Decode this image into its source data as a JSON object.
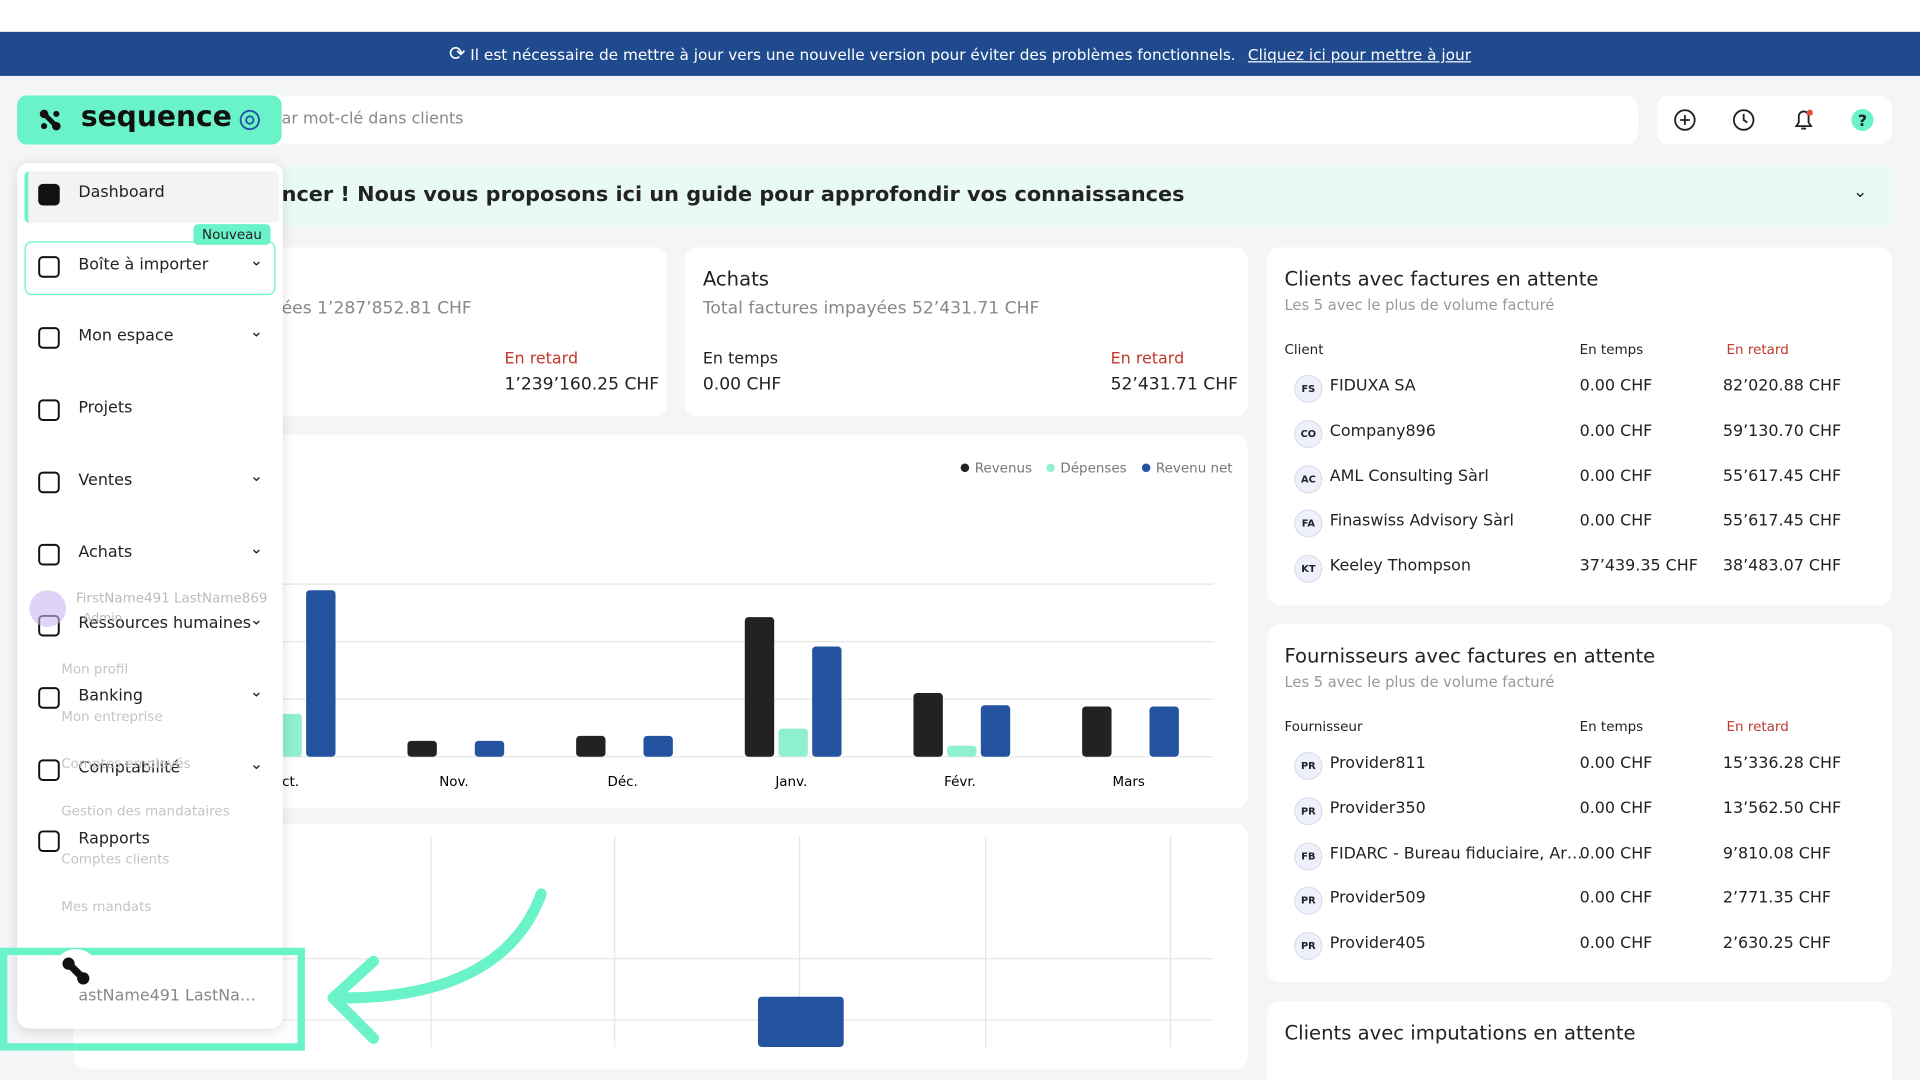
{
  "banner": {
    "message": "Il est nécessaire de mettre à jour vers une nouvelle version pour éviter des problèmes fonctionnels.",
    "link": "Cliquez ici pour mettre à jour"
  },
  "header": {
    "logo": "sequence",
    "search_placeholder": "ar mot-clé dans clients"
  },
  "guide": {
    "text": "ncer ! Nous vous proposons ici un guide pour approfondir vos connaissances"
  },
  "sidebar": {
    "items": [
      "Dashboard",
      "Boîte à importer",
      "Mon espace",
      "Projets",
      "Ventes",
      "Achats",
      "Ressources humaines",
      "Banking",
      "Comptabilité",
      "Rapports"
    ],
    "badge": "Nouveau"
  },
  "user_menu": {
    "name": "FirstName491 LastName869",
    "role": "Admin",
    "items": [
      "Mon profil",
      "Mon entreprise",
      "Comptes employés",
      "Gestion des mandataires",
      "Comptes clients",
      "Mes mandats"
    ],
    "footer": "astName491 LastNa…"
  },
  "sales_card": {
    "total": "ées 1’287’852.81 CHF",
    "late_label": "En retard",
    "late_value": "1’239’160.25 CHF"
  },
  "purchases_card": {
    "title": "Achats",
    "total": "Total factures impayées 52’431.71 CHF",
    "on_time_label": "En temps",
    "on_time_value": "0.00 CHF",
    "late_label": "En retard",
    "late_value": "52’431.71 CHF"
  },
  "revenue_chart": {
    "type": "bar",
    "categories": [
      "Oct.",
      "Nov.",
      "Déc.",
      "Janv.",
      "Févr.",
      "Mars"
    ],
    "series": [
      {
        "name": "Revenus",
        "color": "#222222",
        "values": [
          null,
          13,
          17,
          114,
          52,
          41
        ]
      },
      {
        "name": "Dépenses",
        "color": "#8ff0cf",
        "values": [
          35,
          null,
          null,
          23,
          9,
          null
        ]
      },
      {
        "name": "Revenu net",
        "color": "#2453a0",
        "values": [
          136,
          13,
          17,
          90,
          42,
          41
        ]
      }
    ]
  },
  "second_chart": {
    "type": "bar",
    "color": "#2453a0",
    "values": [
      41
    ]
  },
  "clients_card": {
    "title": "Clients avec factures en attente",
    "subtitle": "Les 5 avec le plus de volume facturé",
    "columns": [
      "Client",
      "En temps",
      "En retard"
    ],
    "rows": [
      [
        "FS",
        "FIDUXA SA",
        "0.00 CHF",
        "82’020.88 CHF"
      ],
      [
        "CO",
        "Company896",
        "0.00 CHF",
        "59’130.70 CHF"
      ],
      [
        "AC",
        "AML Consulting Sàrl",
        "0.00 CHF",
        "55’617.45 CHF"
      ],
      [
        "FA",
        "Finaswiss Advisory Sàrl",
        "0.00 CHF",
        "55’617.45 CHF"
      ],
      [
        "KT",
        "Keeley Thompson",
        "37’439.35 CHF",
        "38’483.07 CHF"
      ]
    ]
  },
  "suppliers_card": {
    "title": "Fournisseurs avec factures en attente",
    "subtitle": "Les 5 avec le plus de volume facturé",
    "columns": [
      "Fournisseur",
      "En temps",
      "En retard"
    ],
    "rows": [
      [
        "PR",
        "Provider811",
        "0.00 CHF",
        "15’336.28 CHF"
      ],
      [
        "PR",
        "Provider350",
        "0.00 CHF",
        "13’562.50 CHF"
      ],
      [
        "FB",
        "FIDARC - Bureau fiduciaire, Ar…",
        "0.00 CHF",
        "9’810.08 CHF"
      ],
      [
        "PR",
        "Provider509",
        "0.00 CHF",
        "2’771.35 CHF"
      ],
      [
        "PR",
        "Provider405",
        "0.00 CHF",
        "2’630.25 CHF"
      ]
    ]
  },
  "imputations_card": {
    "title": "Clients avec imputations en attente"
  }
}
